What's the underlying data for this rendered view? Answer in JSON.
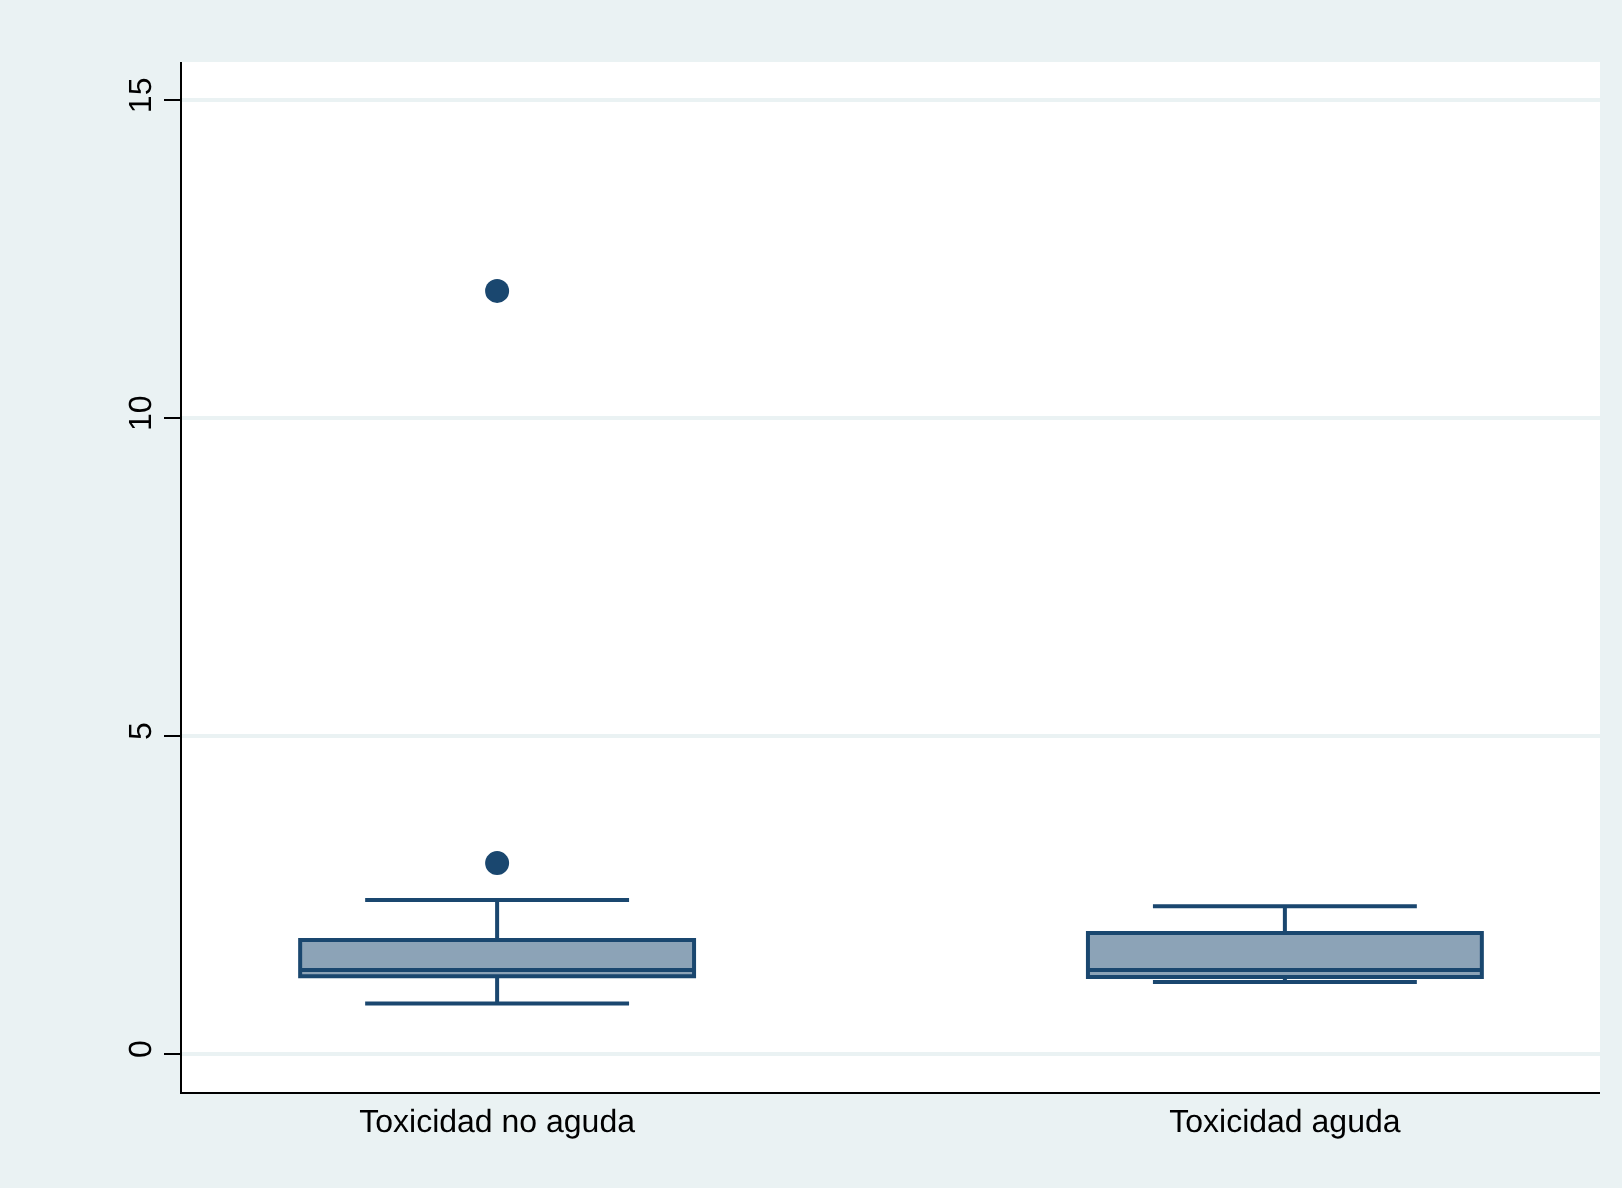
{
  "chart_data": {
    "type": "box",
    "categories": [
      "Toxicidad no aguda",
      "Toxicidad aguda"
    ],
    "boxes": [
      {
        "low": 0.79,
        "q1": 1.22,
        "median": 1.32,
        "q3": 1.79,
        "high": 2.42,
        "outliers": [
          3,
          12
        ]
      },
      {
        "low": 1.13,
        "q1": 1.21,
        "median": 1.32,
        "q3": 1.9,
        "high": 2.32
      }
    ],
    "color": "#1a476f",
    "marker": "circle",
    "ylim": [
      -0.6,
      15.6
    ],
    "yticks": [
      0,
      5,
      10,
      15
    ],
    "grid": "y"
  }
}
